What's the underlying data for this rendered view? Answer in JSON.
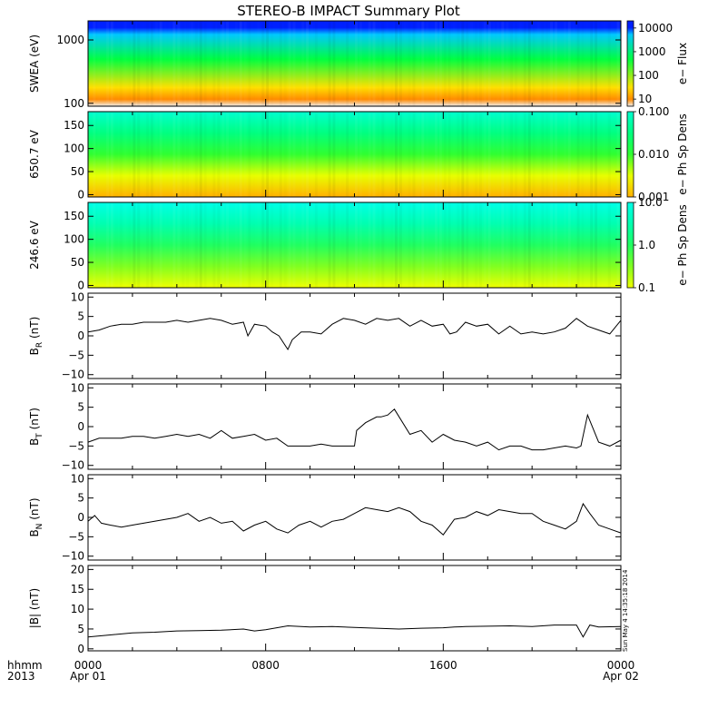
{
  "title": "STEREO-B IMPACT Summary Plot",
  "timestamp": "Sun May  4 14:35:18 2014",
  "time_axis": {
    "row1_label": "hhmm",
    "row2_label": "2013",
    "ticks": [
      {
        "t": 0,
        "top": "0000",
        "bottom": "Apr 01"
      },
      {
        "t": 8,
        "top": "0800",
        "bottom": ""
      },
      {
        "t": 16,
        "top": "1600",
        "bottom": ""
      },
      {
        "t": 24,
        "top": "0000",
        "bottom": "Apr 02"
      }
    ]
  },
  "chart_data": [
    {
      "type": "heatmap",
      "ylabel": "SWEA (eV)",
      "yscale": "log",
      "ylim": [
        90,
        2000
      ],
      "yticks": [
        {
          "v": 100,
          "label": "100"
        },
        {
          "v": 1000,
          "label": "1000"
        }
      ],
      "colorbar": {
        "label": "e− Flux",
        "scale": "log",
        "range": [
          5,
          20000
        ],
        "ticks": [
          {
            "v": 10,
            "label": "10"
          },
          {
            "v": 100,
            "label": "100"
          },
          {
            "v": 1000,
            "label": "1000"
          },
          {
            "v": 10000,
            "label": "10000"
          }
        ]
      },
      "colors": [
        "#f0f0f0",
        "#ff8a00",
        "#ffe000",
        "#00ff40",
        "#00c8ff",
        "#0020ff"
      ],
      "color_stops": [
        0,
        0.08,
        0.22,
        0.55,
        0.84,
        0.92
      ]
    },
    {
      "type": "heatmap",
      "ylabel": "650.7 eV",
      "ylim": [
        -5,
        180
      ],
      "yticks": [
        {
          "v": 0,
          "label": "0"
        },
        {
          "v": 50,
          "label": "50"
        },
        {
          "v": 100,
          "label": "100"
        },
        {
          "v": 150,
          "label": "150"
        }
      ],
      "colorbar": {
        "label": "e− Ph Sp Dens",
        "scale": "log",
        "range": [
          0.001,
          0.1
        ],
        "ticks": [
          {
            "v": 0.001,
            "label": "0.001"
          },
          {
            "v": 0.01,
            "label": "0.010"
          },
          {
            "v": 0.1,
            "label": "0.100"
          }
        ]
      },
      "colors": [
        "#ffb000",
        "#e8ff00",
        "#30ff30",
        "#00ff80",
        "#00ffd0"
      ]
    },
    {
      "type": "heatmap",
      "ylabel": "246.6 eV",
      "ylim": [
        -5,
        180
      ],
      "yticks": [
        {
          "v": 0,
          "label": "0"
        },
        {
          "v": 50,
          "label": "50"
        },
        {
          "v": 100,
          "label": "100"
        },
        {
          "v": 150,
          "label": "150"
        }
      ],
      "colorbar": {
        "label": "e− Ph Sp Dens",
        "scale": "log",
        "range": [
          0.1,
          10
        ],
        "ticks": [
          {
            "v": 0.1,
            "label": "0.1"
          },
          {
            "v": 1,
            "label": "1.0"
          },
          {
            "v": 10,
            "label": "10.0"
          }
        ]
      },
      "colors": [
        "#f0ff00",
        "#80ff20",
        "#20ff60",
        "#00ffb0",
        "#00ffe8"
      ]
    },
    {
      "type": "line",
      "ylabel": "B",
      "ylabel_sub": "R",
      "ylabel_unit": "(nT)",
      "ylim": [
        -11,
        11
      ],
      "yticks": [
        {
          "v": -10,
          "label": "−10"
        },
        {
          "v": -5,
          "label": "−5"
        },
        {
          "v": 0,
          "label": "0"
        },
        {
          "v": 5,
          "label": "5"
        },
        {
          "v": 10,
          "label": "10"
        }
      ],
      "x": [
        0,
        0.5,
        1,
        1.5,
        2,
        2.5,
        3,
        3.5,
        4,
        4.5,
        5,
        5.5,
        6,
        6.5,
        7,
        7.2,
        7.5,
        8,
        8.3,
        8.6,
        9,
        9.2,
        9.6,
        10,
        10.5,
        11,
        11.5,
        12,
        12.5,
        13,
        13.5,
        14,
        14.5,
        15,
        15.5,
        16,
        16.3,
        16.6,
        17,
        17.5,
        18,
        18.5,
        19,
        19.5,
        20,
        20.5,
        21,
        21.5,
        22,
        22.5,
        23,
        23.5,
        24
      ],
      "values": [
        1,
        1.5,
        2.5,
        3,
        3,
        3.5,
        3.5,
        3.5,
        4,
        3.5,
        4,
        4.5,
        4,
        3,
        3.5,
        0,
        3,
        2.5,
        1,
        0,
        -3.5,
        -1,
        1,
        1,
        0.5,
        3,
        4.5,
        4,
        3,
        4.5,
        4,
        4.5,
        2.5,
        4,
        2.5,
        3,
        0.5,
        1,
        3.5,
        2.5,
        3,
        0.5,
        2.5,
        0.5,
        1,
        0.5,
        1,
        2,
        4.5,
        2.5,
        1.5,
        0.5,
        4
      ]
    },
    {
      "type": "line",
      "ylabel": "B",
      "ylabel_sub": "T",
      "ylabel_unit": "(nT)",
      "ylim": [
        -11,
        11
      ],
      "yticks": [
        {
          "v": -10,
          "label": "−10"
        },
        {
          "v": -5,
          "label": "−5"
        },
        {
          "v": 0,
          "label": "0"
        },
        {
          "v": 5,
          "label": "5"
        },
        {
          "v": 10,
          "label": "10"
        }
      ],
      "x": [
        0,
        0.5,
        1,
        1.5,
        2,
        2.5,
        3,
        3.5,
        4,
        4.5,
        5,
        5.5,
        6,
        6.5,
        7,
        7.5,
        8,
        8.5,
        9,
        9.5,
        10,
        10.5,
        11,
        11.5,
        12,
        12.1,
        12.5,
        13,
        13.2,
        13.5,
        13.8,
        14.5,
        15,
        15.5,
        16,
        16.5,
        17,
        17.5,
        18,
        18.5,
        19,
        19.5,
        20,
        20.5,
        21,
        21.5,
        22,
        22.2,
        22.5,
        23,
        23.5,
        24
      ],
      "values": [
        -4,
        -3,
        -3,
        -3,
        -2.5,
        -2.5,
        -3,
        -2.5,
        -2,
        -2.5,
        -2,
        -3,
        -1,
        -3,
        -2.5,
        -2,
        -3.5,
        -3,
        -5,
        -5,
        -5,
        -4.5,
        -5,
        -5,
        -5,
        -1,
        1,
        2.5,
        2.5,
        3,
        4.5,
        -2,
        -1,
        -4,
        -2,
        -3.5,
        -4,
        -5,
        -4,
        -6,
        -5,
        -5,
        -6,
        -6,
        -5.5,
        -5,
        -5.5,
        -5,
        3,
        -4,
        -5,
        -3.5
      ]
    },
    {
      "type": "line",
      "ylabel": "B",
      "ylabel_sub": "N",
      "ylabel_unit": "(nT)",
      "ylim": [
        -11,
        11
      ],
      "yticks": [
        {
          "v": -10,
          "label": "−10"
        },
        {
          "v": -5,
          "label": "−5"
        },
        {
          "v": 0,
          "label": "0"
        },
        {
          "v": 5,
          "label": "5"
        },
        {
          "v": 10,
          "label": "10"
        }
      ],
      "x": [
        0,
        0.3,
        0.6,
        1,
        1.5,
        2,
        2.5,
        3,
        3.5,
        4,
        4.5,
        5,
        5.5,
        6,
        6.5,
        7,
        7.5,
        8,
        8.5,
        9,
        9.5,
        10,
        10.5,
        11,
        11.5,
        12,
        12.5,
        13,
        13.5,
        14,
        14.5,
        15,
        15.5,
        16,
        16.5,
        17,
        17.5,
        18,
        18.5,
        19,
        19.5,
        20,
        20.5,
        21,
        21.5,
        22,
        22.3,
        22.6,
        23,
        23.5,
        24
      ],
      "values": [
        -1,
        0.5,
        -1.5,
        -2,
        -2.5,
        -2,
        -1.5,
        -1,
        -0.5,
        0,
        1,
        -1,
        0,
        -1.5,
        -1,
        -3.5,
        -2,
        -1,
        -3,
        -4,
        -2,
        -1,
        -2.5,
        -1,
        -0.5,
        1,
        2.5,
        2,
        1.5,
        2.5,
        1.5,
        -1,
        -2,
        -4.5,
        -0.5,
        0,
        1.5,
        0.5,
        2,
        1.5,
        1,
        1,
        -1,
        -2,
        -3,
        -1,
        3.5,
        1,
        -2,
        -3,
        -4
      ]
    },
    {
      "type": "line",
      "ylabel": "|B| (nT)",
      "ylim": [
        -0.5,
        21
      ],
      "yticks": [
        {
          "v": 0,
          "label": "0"
        },
        {
          "v": 5,
          "label": "5"
        },
        {
          "v": 10,
          "label": "10"
        },
        {
          "v": 15,
          "label": "15"
        },
        {
          "v": 20,
          "label": "20"
        }
      ],
      "x": [
        0,
        1,
        2,
        3,
        4,
        5,
        6,
        7,
        7.5,
        8,
        9,
        10,
        11,
        12,
        13,
        14,
        15,
        16,
        16.5,
        17,
        18,
        19,
        20,
        21,
        22,
        22.3,
        22.6,
        23,
        24
      ],
      "values": [
        3,
        3.5,
        4,
        4.2,
        4.5,
        4.6,
        4.7,
        5,
        4.5,
        4.8,
        5.8,
        5.5,
        5.6,
        5.4,
        5.2,
        5,
        5.2,
        5.3,
        5.5,
        5.6,
        5.7,
        5.8,
        5.6,
        6,
        6,
        3,
        6,
        5.5,
        5.6
      ]
    }
  ]
}
